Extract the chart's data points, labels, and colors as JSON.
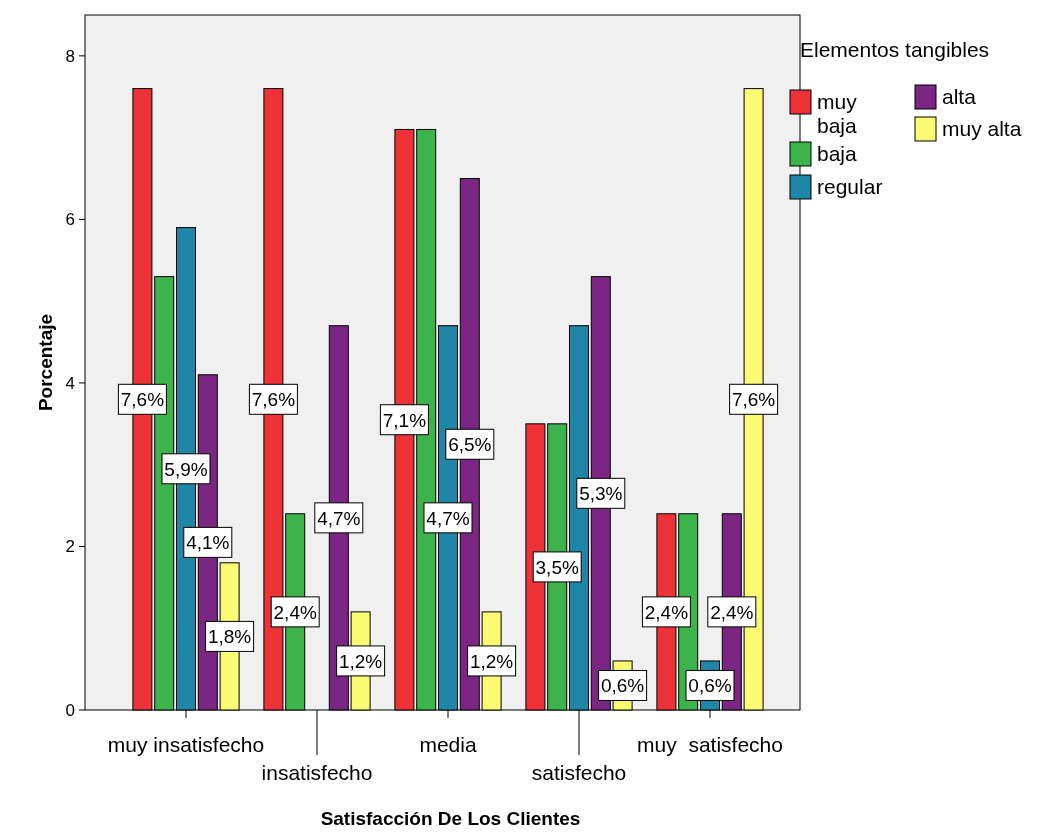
{
  "chart_data": {
    "type": "bar",
    "xlabel": "Satisfacción De Los Clientes",
    "ylabel": "Porcentaje",
    "legend_title": "Elementos tangibles",
    "legend": "top right",
    "categories": [
      "muy insatisfecho",
      "insatisfecho",
      "media",
      "satisfecho",
      "muy  satisfecho"
    ],
    "ylim": [
      0,
      8.5
    ],
    "yticks": [
      0,
      2,
      4,
      6,
      8
    ],
    "grid": false,
    "series": [
      {
        "name": "muy baja",
        "color": "#ee3338",
        "values": [
          7.6,
          7.6,
          7.1,
          3.5,
          2.4
        ],
        "value_labels": [
          "7,6%",
          "7,6%",
          "7,1%",
          null,
          "2,4%"
        ]
      },
      {
        "name": "baja",
        "color": "#3cb44b",
        "values": [
          5.3,
          2.4,
          7.1,
          3.5,
          2.4
        ],
        "value_labels": [
          null,
          "2,4%",
          null,
          "3,5%",
          null
        ]
      },
      {
        "name": "regular",
        "color": "#1f86a8",
        "values": [
          5.9,
          null,
          4.7,
          4.7,
          0.6
        ],
        "value_labels": [
          "5,9%",
          null,
          "4,7%",
          null,
          "0,6%"
        ]
      },
      {
        "name": "alta",
        "color": "#7a2682",
        "values": [
          4.1,
          4.7,
          6.5,
          5.3,
          2.4
        ],
        "value_labels": [
          "4,1%",
          "4,7%",
          "6,5%",
          "5,3%",
          "2,4%"
        ]
      },
      {
        "name": "muy alta",
        "color": "#fbfa73",
        "values": [
          1.8,
          1.2,
          1.2,
          0.6,
          7.6
        ],
        "value_labels": [
          "1,8%",
          "1,2%",
          "1,2%",
          "0,6%",
          "7,6%"
        ]
      }
    ]
  }
}
